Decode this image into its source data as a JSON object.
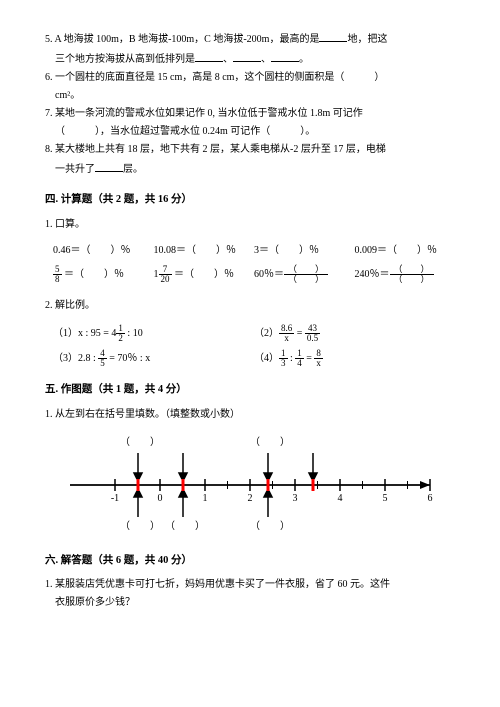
{
  "top": {
    "q5a": "5. A 地海拔 100m，B 地海拔-100m，C 地海拔-200m，最高的是",
    "q5b": "地，把这",
    "q5c": "三个地方按海拔从高到低排列是",
    "q5d": "、",
    "q5e": "、",
    "q5f": "。",
    "q6a": "6. 一个圆柱的底面直径是 15 cm，高是 8 cm，这个圆柱的侧面积是（　　　）",
    "q6b": "cm²。",
    "q7a": "7. 某地一条河流的警戒水位如果记作 0, 当水位低于警戒水位 1.8m 可记作",
    "q7b": "（　　　），当水位超过警戒水位 0.24m 可记作（　　　）。",
    "q8a": "8. 某大楼地上共有 18 层，地下共有 2 层，某人乘电梯从-2 层升至 17 层，电梯",
    "q8b": "一共升了",
    "q8c": "层。"
  },
  "sec4": {
    "title": "四. 计算题（共 2 题，共 16 分）",
    "q1": "1. 口算。",
    "r1c1": "0.46＝（　　）％",
    "r1c2": "10.08＝（　　）％",
    "r1c3": "3＝（　　）％",
    "r1c4": "0.009＝（　　）％",
    "r2c1a": " ＝（　　）％",
    "r2c2a": " ＝（　　）％",
    "r2c3": "60％＝",
    "r2c4": "240％＝",
    "q2": "2. 解比例。",
    "e1a": "（1）x : 95 = 4",
    "e1b": " : 10",
    "e2a": "（2）",
    "e2b": " = ",
    "e3a": "（3）2.8 : ",
    "e3b": " = 70％ : x",
    "e4a": "（4）",
    "e4b": " : ",
    "e4c": " = "
  },
  "sec5": {
    "title": "五. 作图题（共 1 题，共 4 分）",
    "q1": "1. 从左到右在括号里填数。（填整数或小数）"
  },
  "numline": {
    "ticks": [
      "-1",
      "0",
      "1",
      "2",
      "3",
      "4",
      "5",
      "6"
    ],
    "paren": "（　　）"
  },
  "sec6": {
    "title": "六. 解答题（共 6 题，共 40 分）",
    "q1a": "1. 某服装店凭优惠卡可打七折，妈妈用优惠卡买了一件衣服，省了 60 元。这件",
    "q1b": "衣服原价多少钱？"
  },
  "frac": {
    "f58n": "5",
    "f58d": "8",
    "f720n": "7",
    "f720d": "20",
    "f12n": "1",
    "f12d": "2",
    "f86xn": "8.6",
    "f86xd": "x",
    "f4305n": "43",
    "f4305d": "0.5",
    "f45n": "4",
    "f45d": "5",
    "f13n": "1",
    "f13d": "3",
    "f14n": "1",
    "f14d": "4",
    "f8xn": "8",
    "f8xd": "x",
    "pn": "（　　）",
    "pd": "（　　）"
  }
}
